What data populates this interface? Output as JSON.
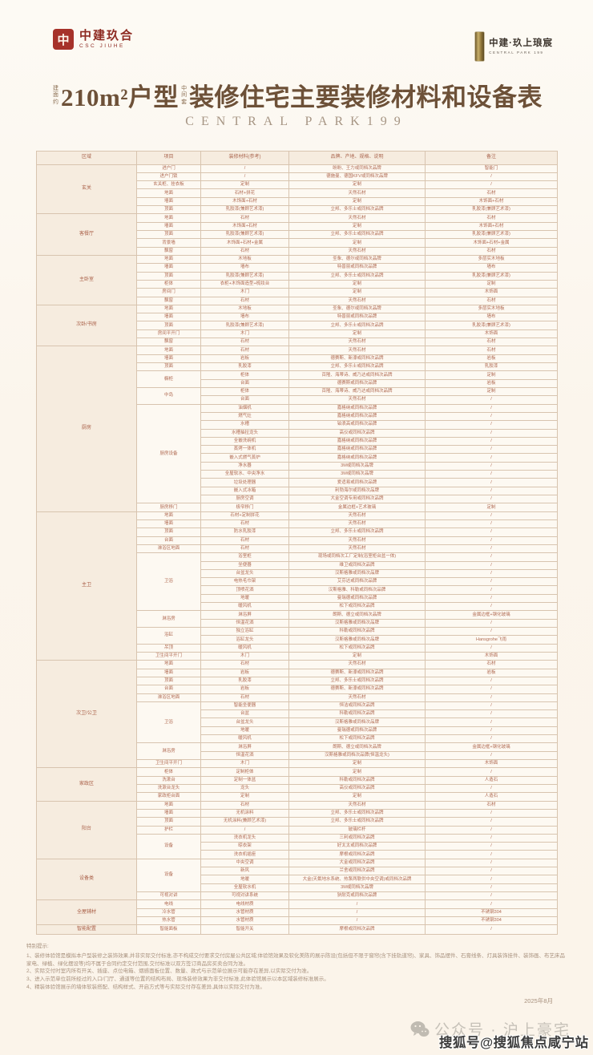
{
  "header": {
    "logo_left": {
      "mark": "中",
      "name": "中建玖合",
      "sub": "CSC JIUHE"
    },
    "logo_right": {
      "name": "中建·玖上琅宸",
      "sub": "CENTRAL PARK 199"
    }
  },
  "title": {
    "prefix_small": "建面约",
    "main_1": "210m²户型",
    "mid_small": "中间套",
    "main_2": "装修住宅主要装修材料和设备表",
    "subtitle": "CENTRAL PARK199"
  },
  "table": {
    "columns": [
      "区域",
      "项目",
      "装修材料(参考)",
      "品牌、产地、规格、说明",
      "备注"
    ],
    "groups": [
      {
        "area": "玄关",
        "rows": [
          [
            "进户门",
            "/",
            "盼盼、王力或同档次品牌",
            "智能门"
          ],
          [
            "进户门锁",
            "/",
            "德施曼、德国KFV或同档次品牌",
            "/"
          ],
          [
            "玄关柜、挂衣板",
            "定制",
            "定制",
            "/"
          ],
          [
            "地面",
            "石材+拼花",
            "天然石材",
            "石材"
          ],
          [
            "墙面",
            "木饰面+石材",
            "定制",
            "木饰面+石材"
          ],
          [
            "顶面",
            "乳胶漆(兼顾艺术漆)",
            "立邦、多乐士或同档次品牌",
            "乳胶漆(兼顾艺术漆)"
          ]
        ]
      },
      {
        "area": "客餐厅",
        "rows": [
          [
            "地面",
            "石材",
            "天然石材",
            "石材"
          ],
          [
            "墙面",
            "木饰面+石材",
            "定制",
            "木饰面+石材"
          ],
          [
            "顶面",
            "乳胶漆(兼顾艺术漆)",
            "立邦、多乐士或同档次品牌",
            "乳胶漆(兼顾艺术漆)"
          ],
          [
            "背景墙",
            "木饰面+石材+金属",
            "定制",
            "木饰面+石材+金属"
          ],
          [
            "飘窗",
            "石材",
            "天然石材",
            "石材"
          ]
        ]
      },
      {
        "area": "主卧室",
        "rows": [
          [
            "地面",
            "木地板",
            "圣象、德尔或同档次品牌",
            "多层实木地板"
          ],
          [
            "墙面",
            "墙布",
            "特普丽或同档次品牌",
            "墙布"
          ],
          [
            "顶面",
            "乳胶漆(兼顾艺术漆)",
            "立邦、多乐士或同档次品牌",
            "乳胶漆(兼顾艺术漆)"
          ],
          [
            "柜体",
            "衣柜+木饰面造型+梳妆台",
            "定制",
            "定制"
          ],
          [
            "房间门",
            "木门",
            "定制",
            "木饰面"
          ],
          [
            "飘窗",
            "石材",
            "天然石材",
            "石材"
          ]
        ]
      },
      {
        "area": "次卧/书房",
        "rows": [
          [
            "地面",
            "木地板",
            "圣象、德尔或同档次品牌",
            "多层实木地板"
          ],
          [
            "墙面",
            "墙布",
            "特普丽或同档次品牌",
            "墙布"
          ],
          [
            "顶面",
            "乳胶漆(兼顾艺术漆)",
            "立邦、多乐士或同档次品牌",
            "乳胶漆(兼顾艺术漆)"
          ],
          [
            "房间平开门",
            "木门",
            "定制",
            "木饰面"
          ],
          [
            "飘窗",
            "石材",
            "天然石材",
            "石材"
          ]
        ]
      },
      {
        "area": "厨房",
        "rows": [
          [
            "地面",
            "石材",
            "天然石材",
            "石材"
          ],
          [
            "墙面",
            "岩板",
            "德赛斯、新濠或同档次品牌",
            "岩板"
          ],
          [
            "顶面",
            "乳胶漆",
            "立邦、多乐士或同档次品牌",
            "乳胶漆"
          ],
          [
            {
              "t": "橱柜",
              "rs": 2
            },
            "柜体",
            "百隆、海蒂诗、威乃达或同档次品牌",
            "定制"
          ],
          [
            "台面",
            "德赛斯或同档次品牌",
            "岩板"
          ],
          [
            {
              "t": "中岛",
              "rs": 2
            },
            "柜体",
            "百隆、海蒂诗、威乃达或同档次品牌",
            "定制"
          ],
          [
            "台面",
            "天然石材",
            "/"
          ],
          [
            {
              "t": "厨房设备",
              "rs": 12
            },
            "油烟机",
            "嘉格纳或同档次品牌",
            "/"
          ],
          [
            "燃气灶",
            "嘉格纳或同档次品牌",
            "/"
          ],
          [
            "水槽",
            "铂浪高或同档次品牌",
            "/"
          ],
          [
            "水槽抽拉龙头",
            "高仪或同档次品牌",
            "/"
          ],
          [
            "全嵌洗碗机",
            "嘉格纳或同档次品牌",
            "/"
          ],
          [
            "蒸烤一体机",
            "嘉格纳或同档次品牌",
            "/"
          ],
          [
            "嵌入式燃气蒸炉",
            "嘉格纳或同档次品牌",
            "/"
          ],
          [
            "净水器",
            "3M或同档次品牌",
            "/"
          ],
          [
            "全屋软水、中央净水",
            "3M或同档次品牌",
            "/"
          ],
          [
            "垃圾处理器",
            "爱适易或同档次品牌",
            "/"
          ],
          [
            "嵌入式冰箱",
            "利勃海尔或同档次品牌",
            "/"
          ],
          [
            "厨房空调",
            "大金空调专用或同档次品牌",
            "/"
          ],
          [
            "厨房移门",
            "极窄移门",
            "金属边框+艺术玻璃",
            "定制"
          ]
        ]
      },
      {
        "area": "主卫",
        "rows": [
          [
            "地面",
            "石材+定制拼花",
            "天然石材",
            "/"
          ],
          [
            "墙面",
            "石材",
            "天然石材",
            "/"
          ],
          [
            "顶面",
            "防水乳胶漆",
            "立邦、多乐士或同档次品牌",
            "/"
          ],
          [
            "台面",
            "石材",
            "天然石材",
            "/"
          ],
          [
            "淋浴区地面",
            "石材",
            "天然石材",
            "/"
          ],
          [
            {
              "t": "卫浴",
              "rs": 7
            },
            "浴室柜",
            "现场或同档次工厂定制(浴室柜台盆一体)",
            "/"
          ],
          [
            "坐便器",
            "维卫或同档次品牌",
            "/"
          ],
          [
            "台盆龙头",
            "汉斯格雅或同档次品牌",
            "/"
          ],
          [
            "电热毛巾架",
            "艾芬达或同档次品牌",
            "/"
          ],
          [
            "顶喷花洒",
            "汉斯格雅、科勒或同档次品牌",
            "/"
          ],
          [
            "地暖",
            "曼瑞德或同档次品牌",
            "/"
          ],
          [
            "暖风机",
            "松下或同档次品牌",
            "/"
          ],
          [
            {
              "t": "淋浴房",
              "rs": 2
            },
            "淋浴屏",
            "朗斯、德立或同档次品牌",
            "金属边框+钢化玻璃"
          ],
          [
            "恒温花洒",
            "汉斯格雅或同档次品牌",
            "/"
          ],
          [
            {
              "t": "浴缸",
              "rs": 2
            },
            "独立浴缸",
            "科勒或同档次品牌",
            "/"
          ],
          [
            "浴缸龙头",
            "汉斯格雅或同档次品牌",
            "Hansgrohe飞雨"
          ],
          [
            "吊顶",
            "暖风机",
            "松下或同档次品牌",
            "/"
          ],
          [
            "卫生间平开门",
            "木门",
            "定制",
            "木饰面"
          ]
        ]
      },
      {
        "area": "次卫/公卫",
        "rows": [
          [
            "地面",
            "石材",
            "天然石材",
            "石材"
          ],
          [
            "墙面",
            "岩板",
            "德赛斯、新濠或同档次品牌",
            "岩板"
          ],
          [
            "顶面",
            "乳胶漆",
            "立邦、多乐士或同档次品牌",
            "/"
          ],
          [
            "台面",
            "岩板",
            "德赛斯、新濠或同档次品牌",
            "/"
          ],
          [
            "淋浴区地面",
            "石材",
            "天然石材",
            "/"
          ],
          [
            {
              "t": "卫浴",
              "rs": 5
            },
            "智能坐便器",
            "恒洁或同档次品牌",
            "/"
          ],
          [
            "台盆",
            "科勒或同档次品牌",
            "/"
          ],
          [
            "台盆龙头",
            "汉斯格雅或同档次品牌",
            "/"
          ],
          [
            "地暖",
            "曼瑞德或同档次品牌",
            "/"
          ],
          [
            "暖风机",
            "松下或同档次品牌",
            "/"
          ],
          [
            {
              "t": "淋浴房",
              "rs": 2
            },
            "淋浴屏",
            "朗斯、德立或同档次品牌",
            "金属边框+钢化玻璃"
          ],
          [
            "恒温花洒",
            "汉斯格雅或同档次品牌(恒温龙头)",
            "/"
          ],
          [
            "卫生间平开门",
            "木门",
            "定制",
            "木饰面"
          ]
        ]
      },
      {
        "area": "家政区",
        "rows": [
          [
            "柜体",
            "定制柜体",
            "定制",
            "/"
          ],
          [
            "洗漱台",
            "定制一体盆",
            "科勒或同档次品牌",
            "人造石"
          ],
          [
            "洗漱台龙头",
            "龙头",
            "高仪或同档次品牌",
            "/"
          ],
          [
            "家政柜台面",
            "定制",
            "定制",
            "人造石"
          ]
        ]
      },
      {
        "area": "阳台",
        "rows": [
          [
            "地面",
            "石材",
            "天然石材",
            "石材"
          ],
          [
            "墙面",
            "无机涂料",
            "立邦、多乐士或同档次品牌",
            "/"
          ],
          [
            "顶面",
            "无机涂料(兼顾艺术漆)",
            "立邦、多乐士或同档次品牌",
            "/"
          ],
          [
            "护栏",
            "/",
            "玻璃栏杆",
            "/"
          ],
          [
            {
              "t": "设备",
              "rs": 3
            },
            "洗衣机龙头",
            "三利或同档次品牌",
            "/"
          ],
          [
            "晾衣架",
            "好太太或同档次品牌",
            "/"
          ],
          [
            "洗衣机插座",
            "摩根或同档次品牌",
            "/"
          ]
        ]
      },
      {
        "area": "设备类",
        "rows": [
          [
            {
              "t": "设备",
              "rs": 4
            },
            "中央空调",
            "大金或同档次品牌",
            "/"
          ],
          [
            "新风",
            "兰舍或同档次品牌",
            "/"
          ],
          [
            "地暖",
            "大金(天氟地水系统、热泵两联供中央空调)或同档次品牌",
            "/"
          ],
          [
            "全屋软水机",
            "3M或同档次品牌",
            "/"
          ],
          [
            "可视对讲",
            "可视对讲系统",
            "狄耐克或同档次品牌",
            "/"
          ]
        ]
      },
      {
        "area": "全屋辅材",
        "rows": [
          [
            "电线",
            "电线材质",
            "/",
            "/"
          ],
          [
            "冷水管",
            "水管材质",
            "/",
            "不锈钢304"
          ],
          [
            "热水管",
            "水管材质",
            "/",
            "不锈钢304"
          ]
        ]
      },
      {
        "area": "智能配置",
        "rows": [
          [
            "智能面板",
            "智能开关",
            "摩根或同档次品牌",
            "/"
          ]
        ]
      }
    ]
  },
  "notes": {
    "heading": "特别提示:",
    "lines": [
      "1、装修体验馆是模拟本户型装修之装饰效果,并非实际交付标准,亦不构成交付要求交付房屋公共区域;体验馆效果及软化美陈的展示陈设(包括但不限于窗帘(含下挂轨道帘)、家具、饰品摆件、石膏线条、灯具装饰挂件、装饰画、布艺床品家电、绿植、绿化摆设等)均不属于合同约定交付范围,交付标准以双方签订商品房买卖合同为准。",
      "2、实际交付时室内所有开关、插座、点位电箱、烟感面板位置、数量、款式与示范单位展示可能存在差异,以实际交付为准。",
      "3、进入示范单位前所经过的入口/门厅、通道等位置的结构布局、现场装修效果为非交付标准,此体验馆展示以本区域装修标准展示。",
      "4、精装体验馆展示的墙体软装搭配、结构样式、开启方式等与实际交付存在差异,具体以实际交付为准。"
    ]
  },
  "date": "2025年8月",
  "watermarks": {
    "wechat": "公众号 · 沪上豪宅",
    "sohu": "搜狐号@搜狐焦点咸宁站"
  },
  "colors": {
    "brand_red": "#a6322a",
    "logo_gold": "#c9b06a",
    "title_brown": "#6d5138",
    "table_text": "#b06b53",
    "table_border": "#d8c4af",
    "region_cell_bg": "#f6ecdf",
    "page_bg": "#fbf4ea",
    "watermark_grey": "#c6c1b8",
    "sohu_dark": "#3d3d3d"
  }
}
